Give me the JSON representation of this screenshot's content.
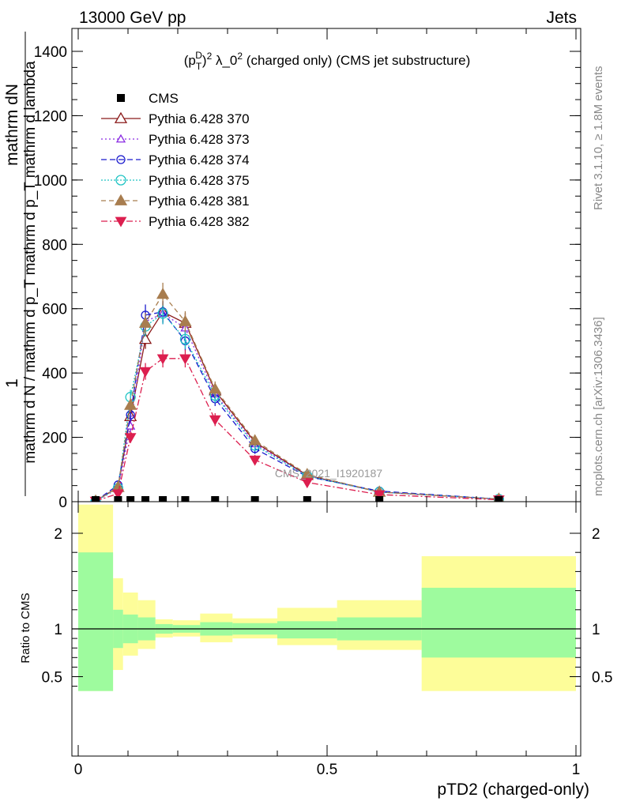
{
  "header": {
    "left": "13000 GeV pp",
    "right": "Jets",
    "side_top": "Rivet 3.1.10, ≥ 1.8M events",
    "side_bottom": "mcplots.cern.ch [arXiv:1306.3436]",
    "watermark": "CMS_2021_I1920187"
  },
  "chart_data": {
    "type": "line",
    "title": "(p_T^D)^2 λ_0^2 (charged only) (CMS jet substructure)",
    "title_parts": {
      "pre": "(p",
      "sup1": "D",
      "sub1": "T",
      "mid": ")",
      "sup2": "2",
      "post": " λ_0",
      "sup3": "2",
      "tail": " (charged only) (CMS jet substructure)"
    },
    "xlabel": "pTD2 (charged-only)",
    "ylabel": {
      "top": "1",
      "numerator": "mathrm d^{2}N",
      "numerator_display": "mathrm dN",
      "denominator": "mathrm d N / mathrm d p_{T} mathrm d p_T mathrm d lambda",
      "denominator_display": "mathrm d N / mathrm d p_T mathrm d p_T mathrm d lambda"
    },
    "xlim": [
      0,
      1
    ],
    "ylim": [
      0,
      1400
    ],
    "x_ticks": [
      {
        "v": 0,
        "label": "0"
      },
      {
        "v": 0.5,
        "label": "0.5"
      },
      {
        "v": 1,
        "label": "1"
      }
    ],
    "y_ticks": [
      {
        "v": 0,
        "label": "0"
      },
      {
        "v": 200,
        "label": "200"
      },
      {
        "v": 400,
        "label": "400"
      },
      {
        "v": 600,
        "label": "600"
      },
      {
        "v": 800,
        "label": "800"
      },
      {
        "v": 1000,
        "label": "1000"
      },
      {
        "v": 1200,
        "label": "1200"
      },
      {
        "v": 1400,
        "label": "1400"
      }
    ],
    "legend_position": "top-left",
    "x": [
      0.035,
      0.08,
      0.105,
      0.135,
      0.17,
      0.215,
      0.275,
      0.355,
      0.46,
      0.605,
      0.845
    ],
    "cms": {
      "name": "CMS",
      "color": "#000000",
      "values": [
        0.3,
        0.6,
        1.2,
        1.5,
        1.6,
        1.3,
        0.9,
        0.6,
        0.35,
        0.15,
        0.03
      ]
    },
    "series": [
      {
        "name": "Pythia 6.428 370",
        "color": "#8b1a1a",
        "dash": "",
        "marker": "triangle-open",
        "values": [
          2,
          45,
          265,
          505,
          590,
          555,
          345,
          185,
          82,
          30,
          8
        ]
      },
      {
        "name": "Pythia 6.428 373",
        "color": "#8a2be2",
        "dash": "2,3",
        "marker": "triangle-open-small",
        "values": [
          2,
          40,
          235,
          560,
          585,
          540,
          335,
          180,
          80,
          30,
          8
        ]
      },
      {
        "name": "Pythia 6.428 374",
        "color": "#1a1acd",
        "dash": "7,4",
        "marker": "circle-open",
        "values": [
          2,
          52,
          270,
          580,
          590,
          500,
          320,
          165,
          78,
          33,
          8
        ]
      },
      {
        "name": "Pythia 6.428 375",
        "color": "#20c4c4",
        "dash": "2,2",
        "marker": "circle-open-big",
        "values": [
          2,
          42,
          325,
          545,
          585,
          505,
          330,
          175,
          80,
          30,
          8
        ]
      },
      {
        "name": "Pythia 6.428 381",
        "color": "#a87d4f",
        "dash": "6,4",
        "marker": "triangle-filled",
        "values": [
          2,
          45,
          300,
          555,
          645,
          560,
          350,
          190,
          85,
          30,
          8
        ]
      },
      {
        "name": "Pythia 6.428 382",
        "color": "#dc1f4f",
        "dash": "8,3,2,3",
        "marker": "triangle-down-filled",
        "values": [
          2,
          25,
          200,
          405,
          445,
          445,
          255,
          130,
          60,
          22,
          6
        ]
      }
    ],
    "ratio": {
      "ylabel": "Ratio to CMS",
      "ylim": [
        0.35,
        2.3
      ],
      "y_ticks": [
        {
          "v": 0.5,
          "label": "0.5"
        },
        {
          "v": 1,
          "label": "1"
        },
        {
          "v": 2,
          "label": "2"
        }
      ],
      "bins": [
        0,
        0.07,
        0.09,
        0.12,
        0.155,
        0.19,
        0.245,
        0.31,
        0.4,
        0.52,
        0.69,
        1.0
      ],
      "band_inner": [
        [
          0.35,
          1.8
        ],
        [
          0.8,
          1.2
        ],
        [
          0.85,
          1.15
        ],
        [
          0.88,
          1.12
        ],
        [
          0.95,
          1.05
        ],
        [
          0.96,
          1.04
        ],
        [
          0.93,
          1.07
        ],
        [
          0.94,
          1.06
        ],
        [
          0.9,
          1.08
        ],
        [
          0.88,
          1.12
        ],
        [
          0.7,
          1.43
        ]
      ],
      "band_outer": [
        [
          0.35,
          2.3
        ],
        [
          0.57,
          1.53
        ],
        [
          0.72,
          1.38
        ],
        [
          0.79,
          1.3
        ],
        [
          0.91,
          1.1
        ],
        [
          0.92,
          1.09
        ],
        [
          0.86,
          1.16
        ],
        [
          0.9,
          1.11
        ],
        [
          0.83,
          1.22
        ],
        [
          0.78,
          1.3
        ],
        [
          0.35,
          1.76
        ]
      ]
    }
  },
  "colors": {
    "band_inner": "#9efb9e",
    "band_outer": "#fdfd99"
  }
}
